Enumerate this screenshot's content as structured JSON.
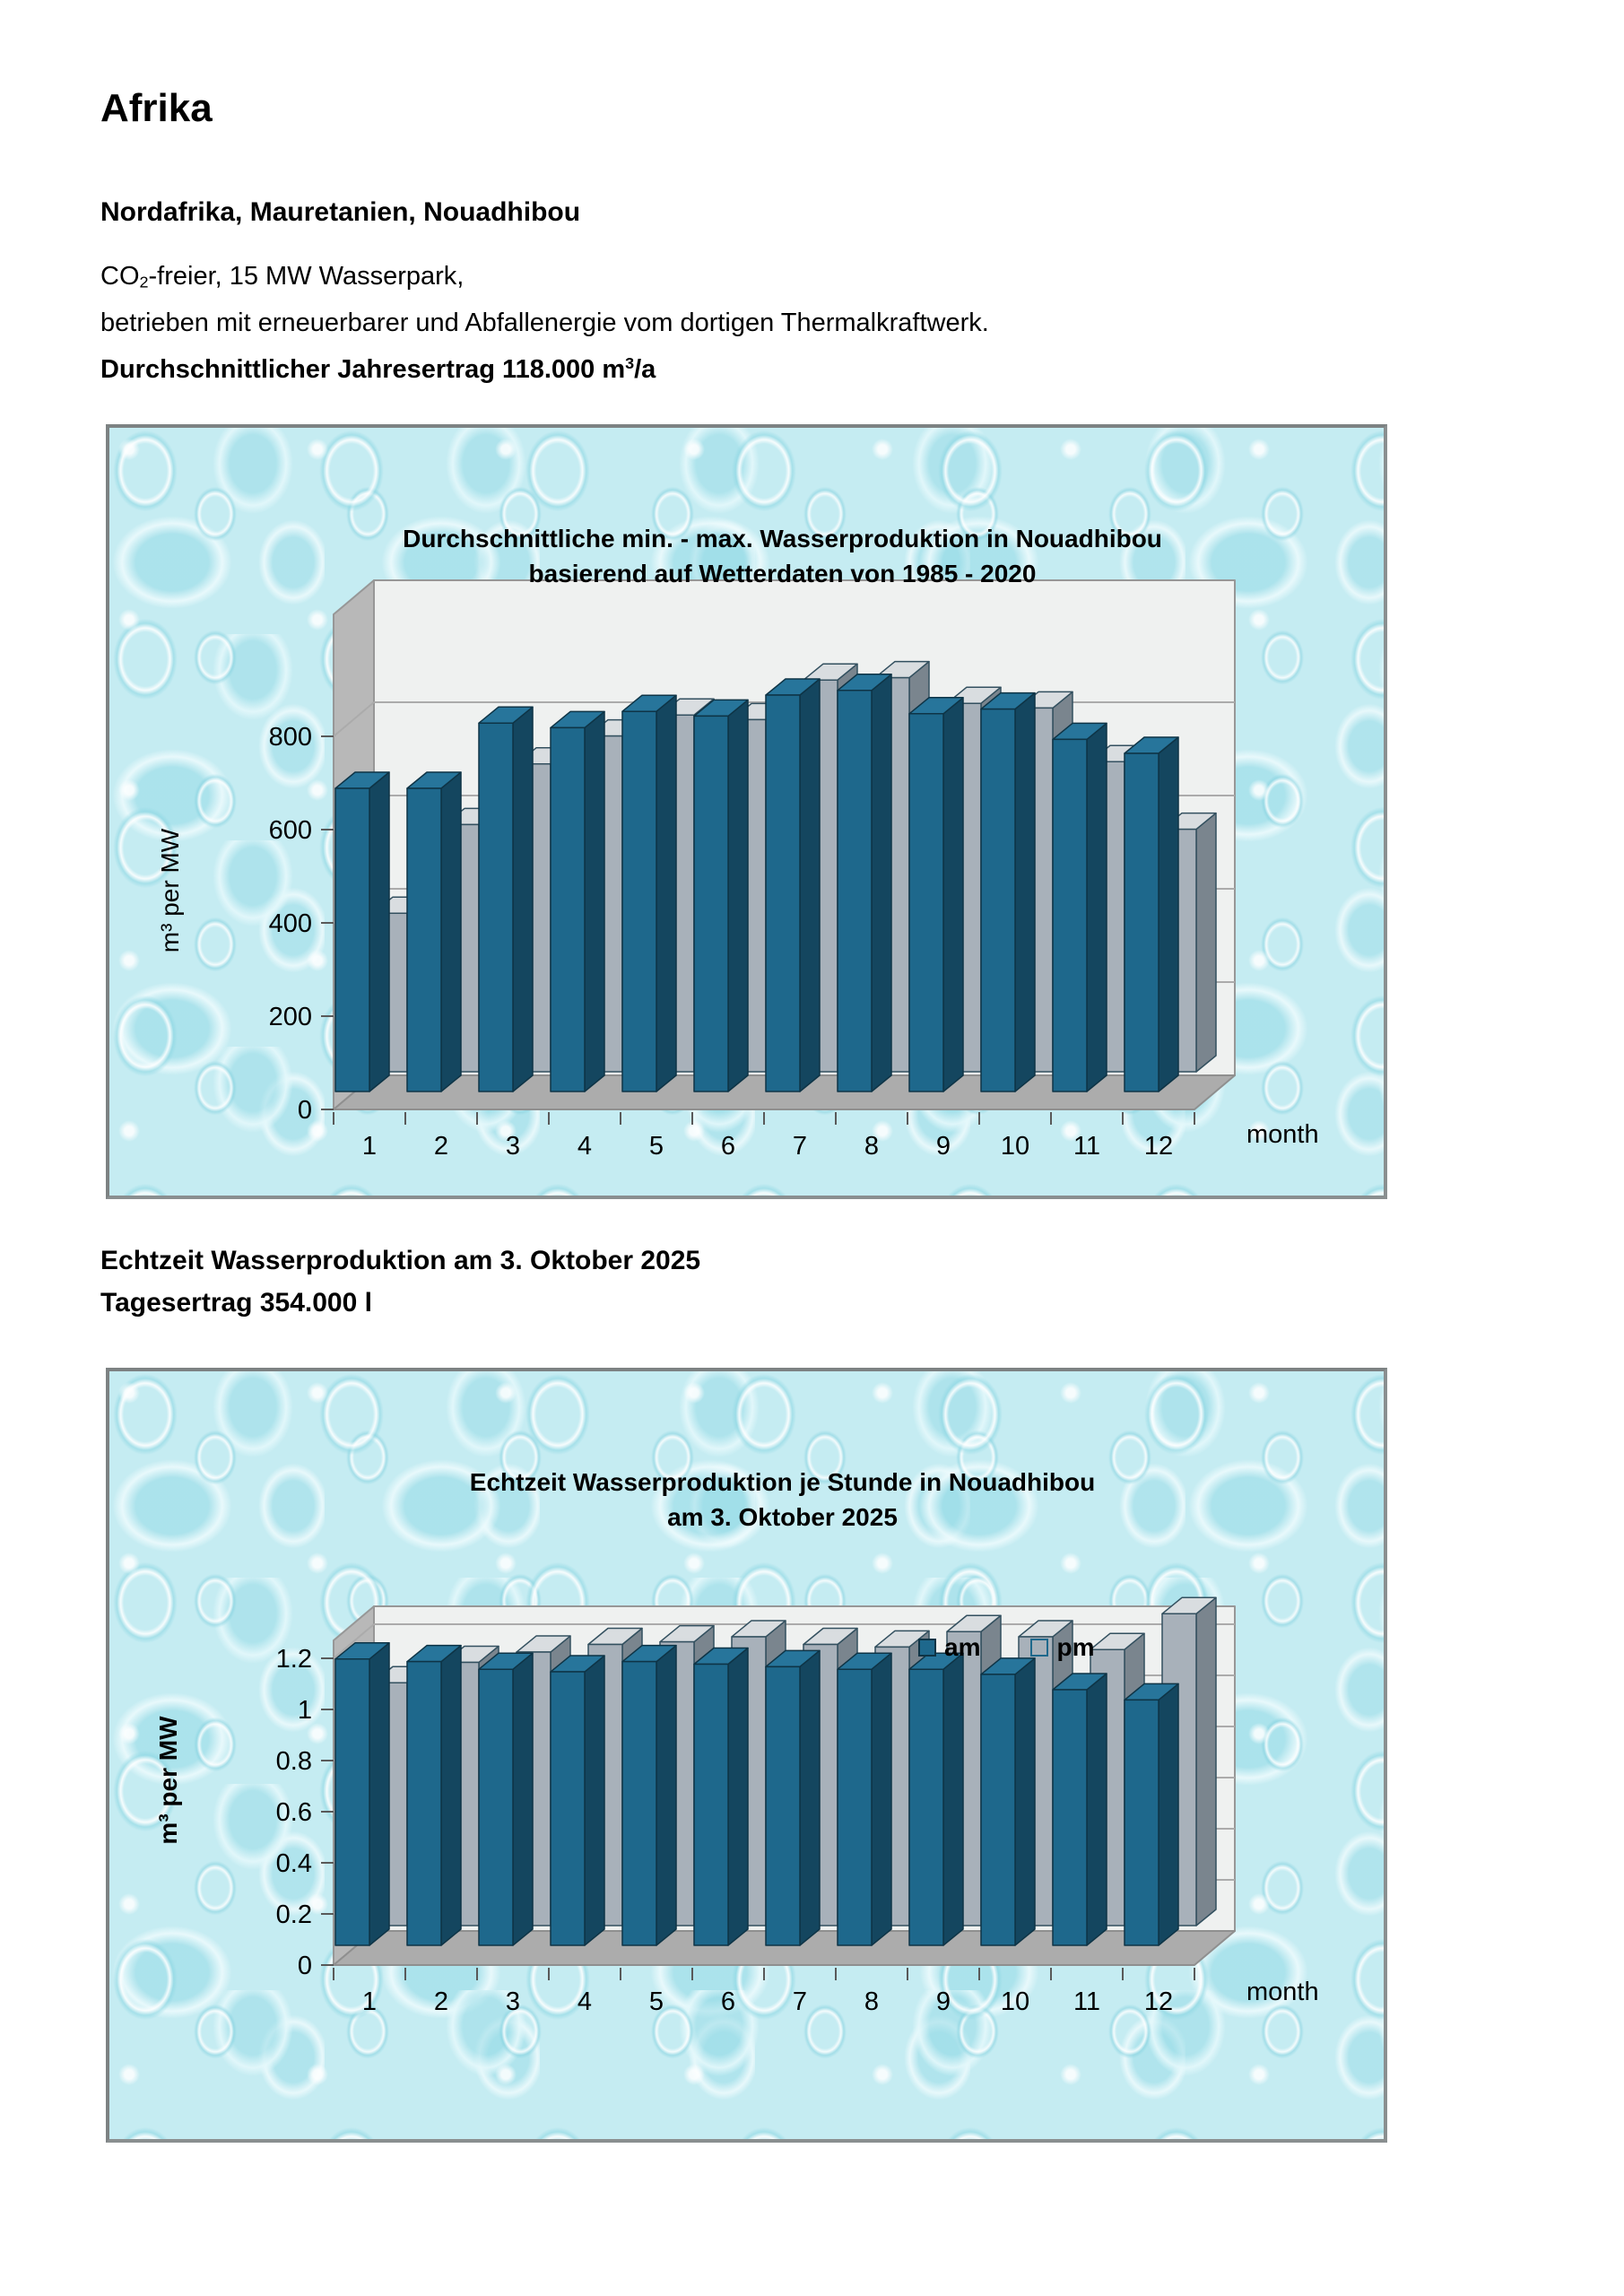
{
  "page": {
    "title": "Afrika",
    "subtitle": "Nordafrika, Mauretanien, Nouadhibou",
    "paragraph": {
      "line1_pre": "CO",
      "line1_sub": "2",
      "line1_post": "-freier, 15 MW Wasserpark,",
      "line2": "betrieben mit erneuerbarer und Abfallenergie vom dortigen Thermalkraftwerk.",
      "line3_pre": "Durchschnittlicher Jahresertrag 118.000 m",
      "line3_sup": "3",
      "line3_post": "/a"
    },
    "section2_heading_line1": "Echtzeit Wasserproduktion am 3. Oktober 2025",
    "section2_heading_line2": "Tagesertrag 354.000 l"
  },
  "chart_data": [
    {
      "type": "bar",
      "projection": "3d",
      "title_line1": "Durchschnittliche min. - max. Wasserproduktion in Nouadhibou",
      "title_line2": "basierend auf Wetterdaten von 1985 - 2020",
      "ylabel": "m³ per MW",
      "xlabel": "month",
      "categories": [
        "1",
        "2",
        "3",
        "4",
        "5",
        "6",
        "7",
        "8",
        "9",
        "10",
        "11",
        "12"
      ],
      "yticks": {
        "values": [
          0,
          200,
          400,
          600,
          800
        ],
        "labels": [
          "0",
          "200",
          "400",
          "600",
          "800"
        ]
      },
      "ylim": [
        0,
        800
      ],
      "grid": true,
      "legend": null,
      "series": [
        {
          "name": "max",
          "values": [
            650,
            650,
            790,
            780,
            815,
            805,
            850,
            860,
            810,
            820,
            755,
            725
          ],
          "color_front": "#1E688C",
          "color_top": "#27759B",
          "color_side": "#14465F",
          "color_outline": "#0E3446"
        },
        {
          "name": "min",
          "values": [
            340,
            530,
            660,
            720,
            765,
            755,
            840,
            845,
            790,
            780,
            665,
            520
          ],
          "color_front": "#A8B1BA",
          "color_top": "#D9DDE0",
          "color_side": "#7A858E",
          "color_outline": "#33505F"
        }
      ]
    },
    {
      "type": "bar",
      "projection": "3d",
      "title_line1": "Echtzeit Wasserproduktion je Stunde in Nouadhibou",
      "title_line2": "am 3. Oktober 2025",
      "ylabel": "m³ per MW",
      "xlabel": "month",
      "categories": [
        "1",
        "2",
        "3",
        "4",
        "5",
        "6",
        "7",
        "8",
        "9",
        "10",
        "11",
        "12"
      ],
      "yticks": {
        "values": [
          0,
          0.2,
          0.4,
          0.6,
          0.8,
          1,
          1.2
        ],
        "labels": [
          "0",
          "0.2",
          "0.4",
          "0.6",
          "0.8",
          "1",
          "1.2"
        ]
      },
      "ylim": [
        0,
        1.2
      ],
      "grid": true,
      "legend": [
        "am",
        "pm"
      ],
      "series": [
        {
          "name": "am",
          "values": [
            1.12,
            1.11,
            1.08,
            1.07,
            1.11,
            1.1,
            1.09,
            1.08,
            1.08,
            1.06,
            1.0,
            0.96
          ],
          "color_front": "#1E688C",
          "color_top": "#27759B",
          "color_side": "#14465F",
          "color_outline": "#0E3446"
        },
        {
          "name": "pm",
          "values": [
            0.95,
            1.03,
            1.07,
            1.1,
            1.11,
            1.13,
            1.1,
            1.09,
            1.15,
            1.13,
            1.08,
            1.22
          ],
          "color_front": "#A8B1BA",
          "color_top": "#D9DDE0",
          "color_side": "#7A858E",
          "color_outline": "#33505F"
        }
      ]
    }
  ]
}
